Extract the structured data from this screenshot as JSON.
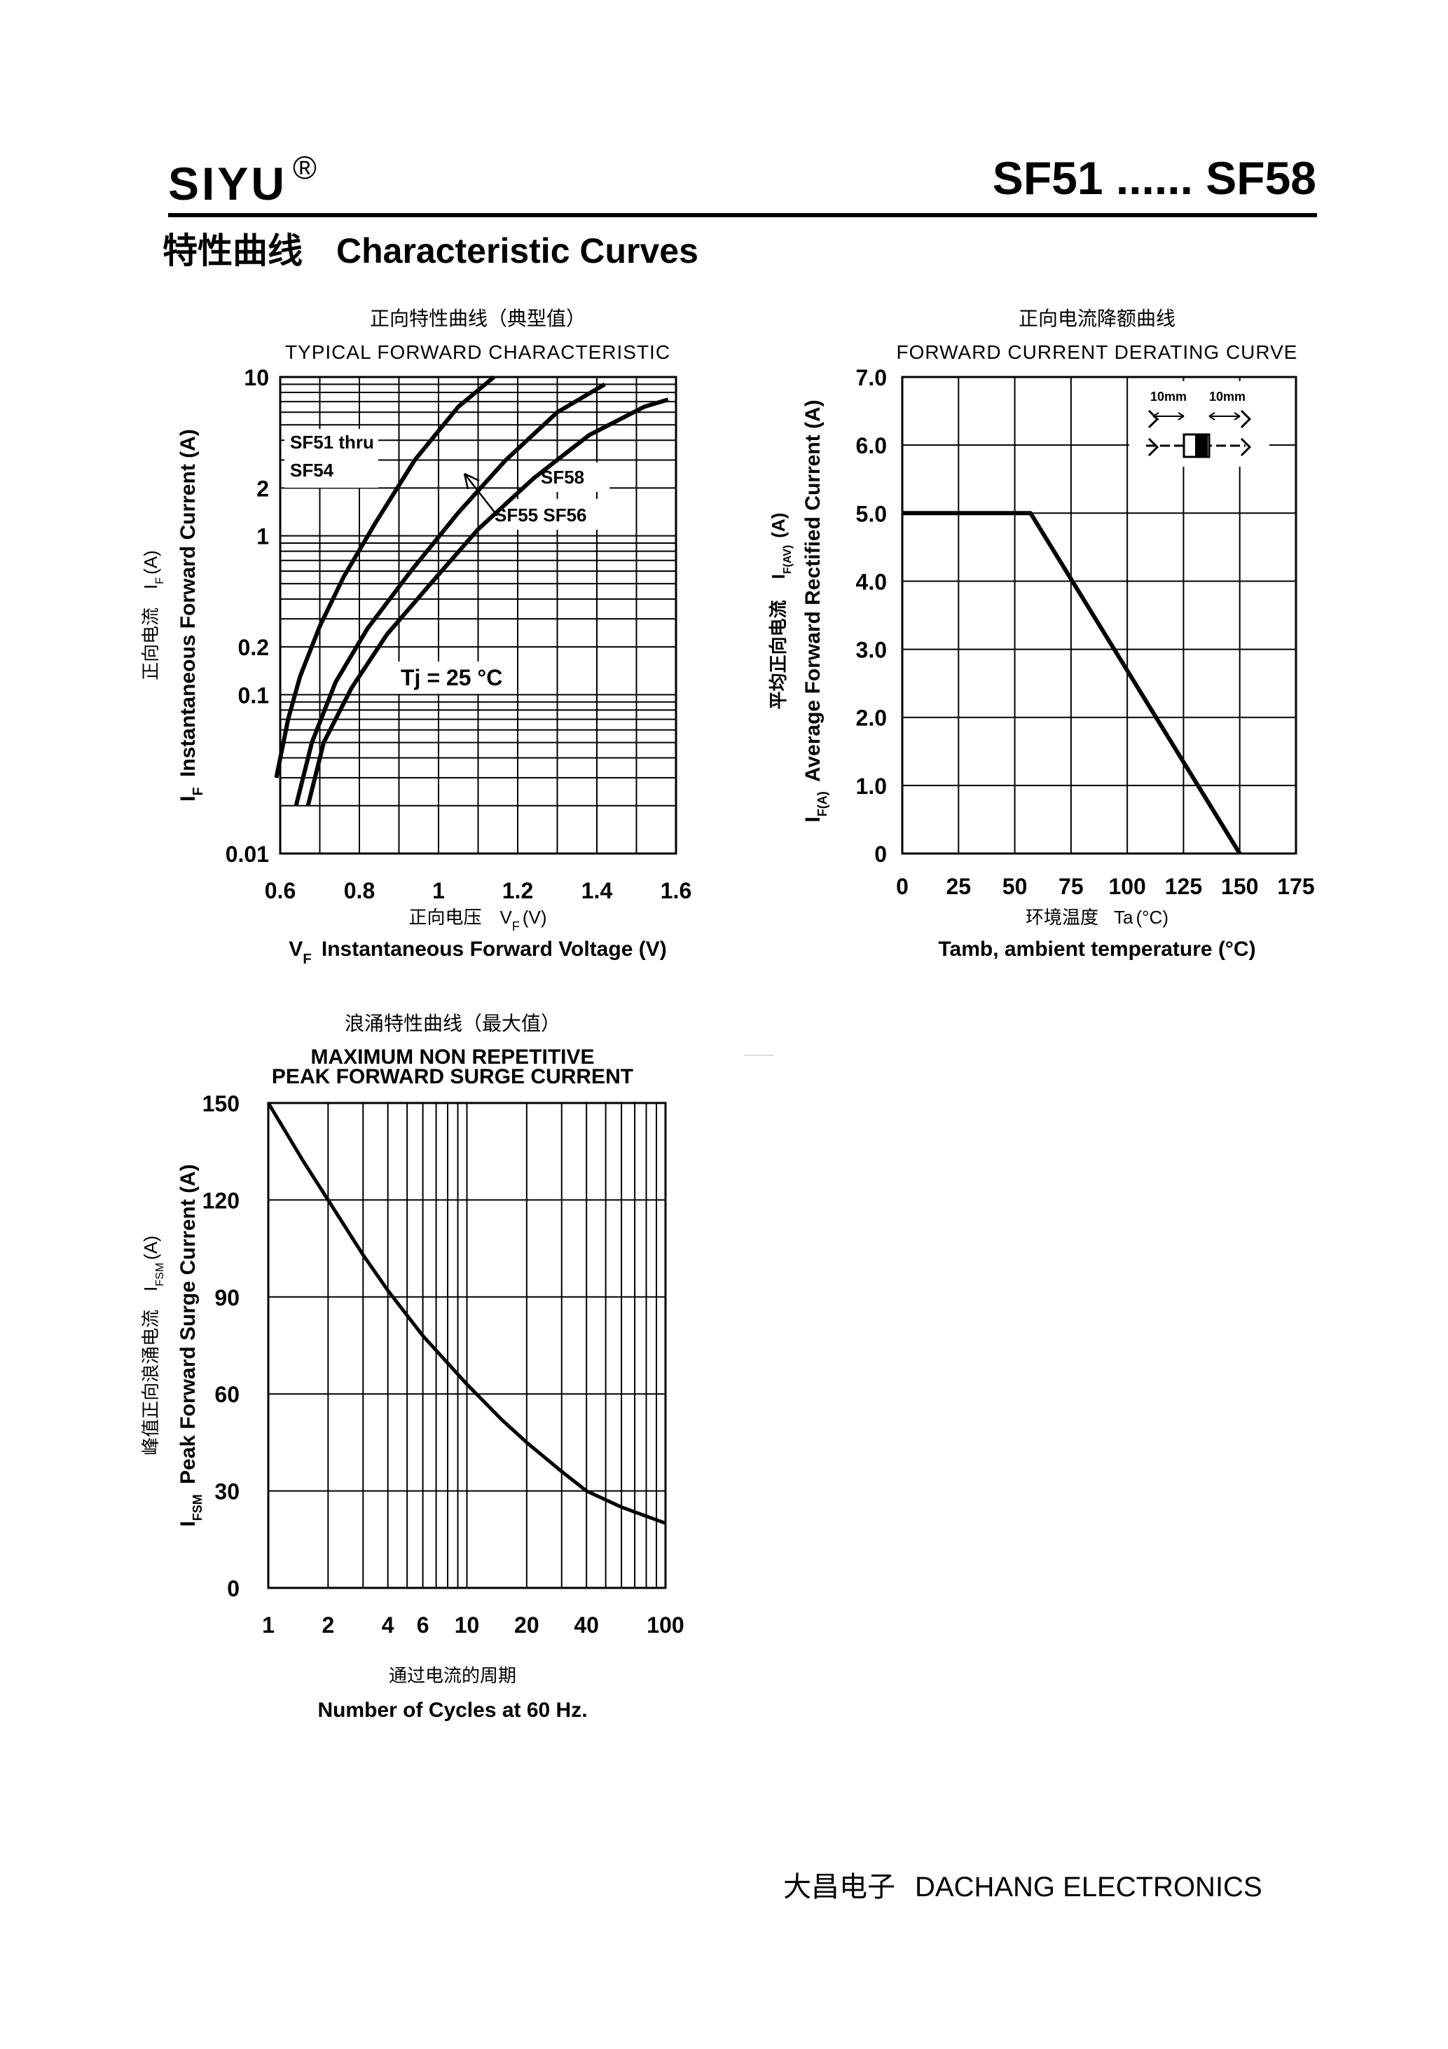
{
  "header": {
    "brand": "SIYU",
    "registered": "®",
    "part_range": "SF51 ...... SF58",
    "section_cn": "特性曲线",
    "section_en": "Characteristic Curves"
  },
  "footer": {
    "company_cn": "大昌电子",
    "company_en": "DACHANG ELECTRONICS"
  },
  "chart_data": [
    {
      "type": "line",
      "title_cn": "正向特性曲线（典型值）",
      "title": "TYPICAL FORWARD CHARACTERISTIC",
      "xlabel_cn": "正向电压",
      "xlabel_cn_sym": "V",
      "xlabel_cn_sub": "F",
      "xlabel_cn_unit": "(V)",
      "xlabel_sym": "V",
      "xlabel_sub": "F",
      "xlabel": "Instantaneous Forward Voltage (V)",
      "ylabel_cn": "正向电流",
      "ylabel_cn_sym": "I",
      "ylabel_cn_sub": "F",
      "ylabel_cn_unit": "(A)",
      "ylabel_sym": "I",
      "ylabel_sub": "F",
      "ylabel": "Instantaneous Forward Current (A)",
      "x_scale": "linear",
      "y_scale": "log",
      "xlim": [
        0.6,
        1.6
      ],
      "ylim": [
        0.01,
        10
      ],
      "x_ticks": [
        "0.6",
        "0.8",
        "1",
        "1.2",
        "1.4",
        "1.6"
      ],
      "y_ticks": [
        "10",
        "2",
        "1",
        "0.2",
        "0.1",
        "0.01"
      ],
      "grid": true,
      "annotations": [
        "SF51 thru",
        "SF54",
        "SF58",
        "SF55  SF56",
        "Tj = 25 °C"
      ],
      "series": [
        {
          "name": "SF51 thru SF54",
          "x": [
            0.59,
            0.62,
            0.65,
            0.7,
            0.76,
            0.84,
            0.94,
            1.05,
            1.14
          ],
          "y": [
            0.03,
            0.07,
            0.13,
            0.27,
            0.55,
            1.2,
            3.0,
            6.5,
            10
          ]
        },
        {
          "name": "SF55 SF56",
          "x": [
            0.64,
            0.68,
            0.74,
            0.82,
            0.93,
            1.05,
            1.17,
            1.3,
            1.42
          ],
          "y": [
            0.02,
            0.05,
            0.12,
            0.26,
            0.6,
            1.4,
            3.0,
            6.0,
            9.0
          ]
        },
        {
          "name": "SF58",
          "x": [
            0.67,
            0.71,
            0.78,
            0.87,
            0.98,
            1.1,
            1.24,
            1.38,
            1.52,
            1.58
          ],
          "y": [
            0.02,
            0.05,
            0.11,
            0.24,
            0.5,
            1.1,
            2.3,
            4.3,
            6.5,
            7.2
          ]
        }
      ]
    },
    {
      "type": "line",
      "title_cn": "正向电流降额曲线",
      "title": "FORWARD CURRENT DERATING CURVE",
      "xlabel_cn": "环境温度",
      "xlabel_cn_sym": "Ta",
      "xlabel_cn_unit": "(°C)",
      "xlabel": "Tamb, ambient temperature (°C)",
      "ylabel_cn": "平均正向电流",
      "ylabel_cn_sym": "I",
      "ylabel_cn_sub": "F(AV)",
      "ylabel_cn_unit": "(A)",
      "ylabel_sym": "I",
      "ylabel_sub": "F(A)",
      "ylabel": "Average Forward Rectified Current (A)",
      "xlim": [
        0,
        175
      ],
      "ylim": [
        0,
        7
      ],
      "x_ticks": [
        "0",
        "25",
        "50",
        "75",
        "100",
        "125",
        "150",
        "175"
      ],
      "y_ticks": [
        "7.0",
        "6.0",
        "5.0",
        "4.0",
        "3.0",
        "2.0",
        "1.0",
        "0"
      ],
      "grid": true,
      "inset_labels": [
        "10mm",
        "10mm"
      ],
      "series": [
        {
          "name": "",
          "x": [
            0,
            57,
            150
          ],
          "y": [
            5.0,
            5.0,
            0
          ]
        }
      ]
    },
    {
      "type": "line",
      "title_cn": "浪涌特性曲线（最大值）",
      "title": "MAXIMUM NON REPETITIVE",
      "title2": "PEAK FORWARD SURGE CURRENT",
      "xlabel_cn": "通过电流的周期",
      "xlabel": "Number  of  Cycles at 60 Hz.",
      "ylabel_cn": "峰值正向浪涌电流",
      "ylabel_cn_sym": "I",
      "ylabel_cn_sub": "FSM",
      "ylabel_cn_unit": "(A)",
      "ylabel_sym": "I",
      "ylabel_sub": "FSM",
      "ylabel": "Peak Forward Surge Current (A)",
      "x_scale": "log",
      "xlim": [
        1,
        100
      ],
      "ylim": [
        0,
        150
      ],
      "x_ticks": [
        "1",
        "2",
        "4",
        "6",
        "10",
        "20",
        "40",
        "100"
      ],
      "y_ticks": [
        "150",
        "120",
        "90",
        "60",
        "30",
        "0"
      ],
      "grid": true,
      "series": [
        {
          "name": "",
          "x": [
            1,
            1.5,
            2,
            3,
            4,
            6,
            10,
            15,
            20,
            30,
            40,
            60,
            100
          ],
          "y": [
            150,
            132,
            120,
            103,
            92,
            78,
            63,
            52,
            45,
            36,
            30,
            25,
            20
          ]
        }
      ]
    }
  ]
}
